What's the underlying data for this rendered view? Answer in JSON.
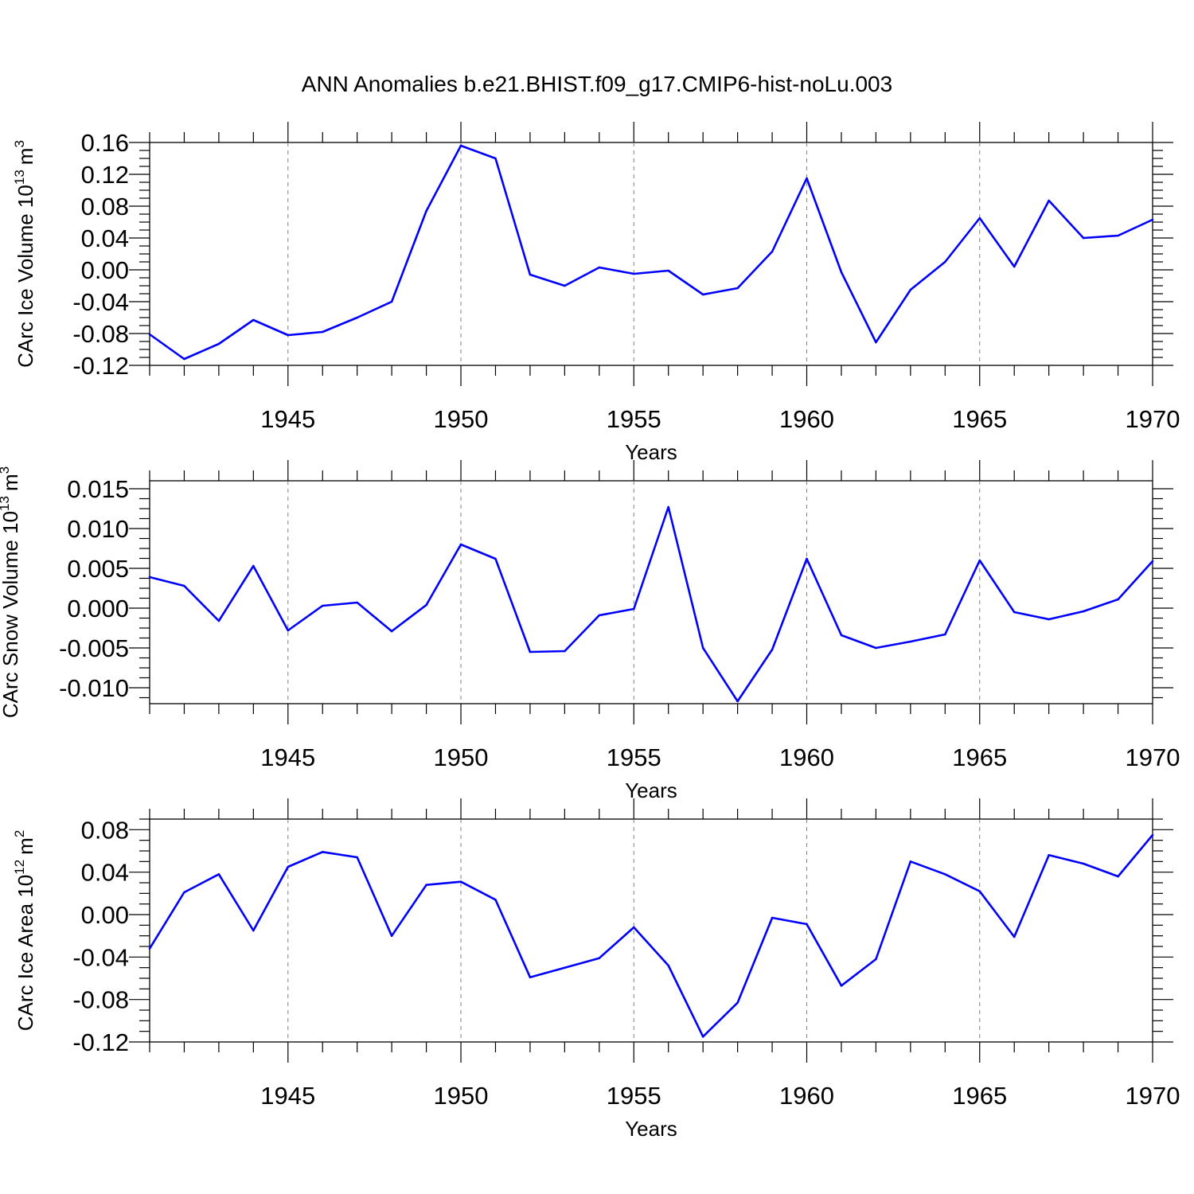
{
  "title": "ANN Anomalies b.e21.BHIST.f09_g17.CMIP6-hist-noLu.003",
  "colors": {
    "line": "#0000ff",
    "axis": "#000000",
    "grid": "#808080"
  },
  "chart_data": [
    {
      "type": "line",
      "title": "ANN Anomalies b.e21.BHIST.f09_g17.CMIP6-hist-noLu.003",
      "ylabel": {
        "text": "CArc Ice Volume 10",
        "exponent": "13",
        "unit": "m",
        "unit_exponent": "3"
      },
      "xlabel": "Years",
      "xlim": [
        1941,
        1970
      ],
      "ylim": [
        -0.12,
        0.16
      ],
      "yticks": [
        -0.12,
        -0.08,
        -0.04,
        0.0,
        0.04,
        0.08,
        0.12,
        0.16
      ],
      "ytick_labels": [
        "-0.12",
        "-0.08",
        "-0.04",
        "0.00",
        "0.04",
        "0.08",
        "0.12",
        "0.16"
      ],
      "xticks": [
        1945,
        1950,
        1955,
        1960,
        1965,
        1970
      ],
      "xtick_labels": [
        "1945",
        "1950",
        "1955",
        "1960",
        "1965",
        "1970"
      ],
      "grid": "vertical dashed at major x ticks",
      "x": [
        1941,
        1942,
        1943,
        1944,
        1945,
        1946,
        1947,
        1948,
        1949,
        1950,
        1951,
        1952,
        1953,
        1954,
        1955,
        1956,
        1957,
        1958,
        1959,
        1960,
        1961,
        1962,
        1963,
        1964,
        1965,
        1966,
        1967,
        1968,
        1969,
        1970
      ],
      "series": [
        {
          "name": "CArc Ice Volume",
          "values": [
            -0.081,
            -0.112,
            -0.093,
            -0.063,
            -0.082,
            -0.078,
            -0.06,
            -0.04,
            0.074,
            0.156,
            0.14,
            -0.006,
            -0.02,
            0.003,
            -0.005,
            -0.001,
            -0.031,
            -0.023,
            0.023,
            0.115,
            -0.003,
            -0.091,
            -0.025,
            0.01,
            0.065,
            0.004,
            0.087,
            0.04,
            0.043,
            0.063
          ]
        }
      ]
    },
    {
      "type": "line",
      "ylabel": {
        "text": "CArc Snow Volume 10",
        "exponent": "13",
        "unit": "m",
        "unit_exponent": "3"
      },
      "xlabel": "Years",
      "xlim": [
        1941,
        1970
      ],
      "ylim": [
        -0.012,
        0.016
      ],
      "yticks": [
        -0.01,
        -0.005,
        0.0,
        0.005,
        0.01,
        0.015
      ],
      "ytick_labels": [
        "-0.010",
        "-0.005",
        "0.000",
        "0.005",
        "0.010",
        "0.015"
      ],
      "xticks": [
        1945,
        1950,
        1955,
        1960,
        1965,
        1970
      ],
      "xtick_labels": [
        "1945",
        "1950",
        "1955",
        "1960",
        "1965",
        "1970"
      ],
      "grid": "vertical dashed at major x ticks",
      "x": [
        1941,
        1942,
        1943,
        1944,
        1945,
        1946,
        1947,
        1948,
        1949,
        1950,
        1951,
        1952,
        1953,
        1954,
        1955,
        1956,
        1957,
        1958,
        1959,
        1960,
        1961,
        1962,
        1963,
        1964,
        1965,
        1966,
        1967,
        1968,
        1969,
        1970
      ],
      "series": [
        {
          "name": "CArc Snow Volume",
          "values": [
            0.0039,
            0.0028,
            -0.0016,
            0.0053,
            -0.0028,
            0.0003,
            0.0007,
            -0.0029,
            0.0004,
            0.008,
            0.0062,
            -0.0055,
            -0.0054,
            -0.0009,
            -0.0001,
            0.0127,
            -0.005,
            -0.0117,
            -0.0052,
            0.0062,
            -0.0034,
            -0.005,
            -0.0042,
            -0.0033,
            0.006,
            -0.0005,
            -0.0014,
            -0.0004,
            0.0011,
            0.0059
          ]
        }
      ]
    },
    {
      "type": "line",
      "ylabel": {
        "text": "CArc Ice Area 10",
        "exponent": "12",
        "unit": "m",
        "unit_exponent": "2"
      },
      "xlabel": "Years",
      "xlim": [
        1941,
        1970
      ],
      "ylim": [
        -0.12,
        0.09
      ],
      "yticks": [
        -0.12,
        -0.08,
        -0.04,
        0.0,
        0.04,
        0.08
      ],
      "ytick_labels": [
        "-0.12",
        "-0.08",
        "-0.04",
        "0.00",
        "0.04",
        "0.08"
      ],
      "xticks": [
        1945,
        1950,
        1955,
        1960,
        1965,
        1970
      ],
      "xtick_labels": [
        "1945",
        "1950",
        "1955",
        "1960",
        "1965",
        "1970"
      ],
      "grid": "vertical dashed at major x ticks",
      "x": [
        1941,
        1942,
        1943,
        1944,
        1945,
        1946,
        1947,
        1948,
        1949,
        1950,
        1951,
        1952,
        1953,
        1954,
        1955,
        1956,
        1957,
        1958,
        1959,
        1960,
        1961,
        1962,
        1963,
        1964,
        1965,
        1966,
        1967,
        1968,
        1969,
        1970
      ],
      "series": [
        {
          "name": "CArc Ice Area",
          "values": [
            -0.032,
            0.021,
            0.038,
            -0.015,
            0.045,
            0.059,
            0.054,
            -0.02,
            0.028,
            0.031,
            0.014,
            -0.059,
            -0.05,
            -0.041,
            -0.012,
            -0.048,
            -0.115,
            -0.083,
            -0.003,
            -0.009,
            -0.067,
            -0.042,
            0.05,
            0.038,
            0.022,
            -0.021,
            0.056,
            0.048,
            0.036,
            0.075
          ]
        }
      ]
    }
  ]
}
